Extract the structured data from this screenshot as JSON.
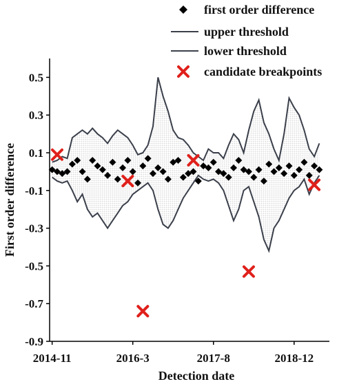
{
  "chart_data": {
    "type": "line",
    "xlabel": "Detection date",
    "ylabel": "First order difference",
    "x_ticks": [
      "2014-11",
      "2016-3",
      "2017-8",
      "2018-12"
    ],
    "x_tick_index": [
      0,
      16,
      32,
      48
    ],
    "y_ticks": [
      0.5,
      0.3,
      0.1,
      -0.1,
      -0.3,
      -0.5,
      -0.7,
      -0.9
    ],
    "ylim": [
      -0.9,
      0.6
    ],
    "xlim": [
      -0.5,
      55
    ],
    "grid": false,
    "legend_position": "top-right",
    "legend": [
      {
        "label": "first order difference",
        "marker": "diamond"
      },
      {
        "label": "upper threshold",
        "marker": "line"
      },
      {
        "label": "lower threshold",
        "marker": "line"
      },
      {
        "label": "candidate breakpoints",
        "marker": "x"
      }
    ],
    "colors": {
      "points": "#000000",
      "threshold": "#3a3f4a",
      "band_fill": "#d9d9d9",
      "breakpoint": "#e0201b"
    },
    "series": [
      {
        "name": "first order difference",
        "marker": "diamond",
        "x": [
          0,
          1,
          2,
          3,
          4,
          5,
          6,
          7,
          8,
          9,
          10,
          11,
          12,
          13,
          14,
          15,
          16,
          17,
          18,
          19,
          20,
          21,
          22,
          23,
          24,
          25,
          26,
          27,
          28,
          29,
          30,
          31,
          32,
          33,
          34,
          35,
          36,
          37,
          38,
          39,
          40,
          41,
          42,
          43,
          44,
          45,
          46,
          47,
          48,
          49,
          50,
          51,
          52,
          53
        ],
        "y": [
          0.01,
          0.0,
          -0.01,
          0.0,
          0.04,
          0.06,
          0.0,
          -0.04,
          0.06,
          0.03,
          0.01,
          -0.02,
          0.05,
          -0.04,
          0.02,
          0.06,
          0.0,
          -0.06,
          0.03,
          0.07,
          -0.01,
          0.02,
          0.0,
          -0.04,
          0.05,
          0.06,
          -0.03,
          -0.01,
          0.0,
          -0.05,
          0.03,
          0.02,
          0.05,
          0.0,
          -0.01,
          -0.03,
          0.02,
          0.06,
          0.01,
          0.0,
          -0.03,
          0.01,
          -0.05,
          0.04,
          0.0,
          0.02,
          -0.01,
          0.03,
          -0.02,
          0.01,
          0.05,
          -0.02,
          0.03,
          0.01
        ]
      },
      {
        "name": "upper threshold",
        "x": [
          0,
          1,
          2,
          3,
          4,
          5,
          6,
          7,
          8,
          9,
          10,
          11,
          12,
          13,
          14,
          15,
          16,
          17,
          18,
          19,
          20,
          21,
          22,
          23,
          24,
          25,
          26,
          27,
          28,
          29,
          30,
          31,
          32,
          33,
          34,
          35,
          36,
          37,
          38,
          39,
          40,
          41,
          42,
          43,
          44,
          45,
          46,
          47,
          48,
          49,
          50,
          51,
          52,
          53
        ],
        "y": [
          0.05,
          0.06,
          0.08,
          0.07,
          0.18,
          0.2,
          0.22,
          0.2,
          0.23,
          0.2,
          0.18,
          0.15,
          0.19,
          0.22,
          0.2,
          0.18,
          0.14,
          0.09,
          0.1,
          0.14,
          0.24,
          0.5,
          0.4,
          0.32,
          0.22,
          0.18,
          0.17,
          0.14,
          0.1,
          0.08,
          0.06,
          0.12,
          0.1,
          0.1,
          0.07,
          0.14,
          0.2,
          0.17,
          0.1,
          0.22,
          0.32,
          0.38,
          0.26,
          0.2,
          0.12,
          0.06,
          0.2,
          0.39,
          0.34,
          0.3,
          0.22,
          0.12,
          0.08,
          0.15
        ]
      },
      {
        "name": "lower threshold",
        "x": [
          0,
          1,
          2,
          3,
          4,
          5,
          6,
          7,
          8,
          9,
          10,
          11,
          12,
          13,
          14,
          15,
          16,
          17,
          18,
          19,
          20,
          21,
          22,
          23,
          24,
          25,
          26,
          27,
          28,
          29,
          30,
          31,
          32,
          33,
          34,
          35,
          36,
          37,
          38,
          39,
          40,
          41,
          42,
          43,
          44,
          45,
          46,
          47,
          48,
          49,
          50,
          51,
          52,
          53
        ],
        "y": [
          -0.03,
          -0.05,
          -0.06,
          -0.05,
          -0.1,
          -0.16,
          -0.12,
          -0.2,
          -0.24,
          -0.22,
          -0.26,
          -0.3,
          -0.26,
          -0.22,
          -0.18,
          -0.16,
          -0.12,
          -0.1,
          -0.08,
          -0.06,
          -0.1,
          -0.2,
          -0.28,
          -0.3,
          -0.26,
          -0.2,
          -0.14,
          -0.1,
          -0.06,
          -0.02,
          -0.04,
          -0.05,
          -0.04,
          -0.06,
          -0.1,
          -0.18,
          -0.26,
          -0.2,
          -0.1,
          -0.08,
          -0.16,
          -0.24,
          -0.36,
          -0.42,
          -0.3,
          -0.26,
          -0.2,
          -0.14,
          -0.1,
          -0.08,
          -0.04,
          -0.12,
          -0.06,
          -0.02
        ]
      },
      {
        "name": "candidate breakpoints",
        "marker": "x",
        "x": [
          1,
          15,
          18,
          28,
          39,
          52
        ],
        "y": [
          0.09,
          -0.05,
          -0.74,
          0.06,
          -0.53,
          -0.07
        ]
      }
    ]
  }
}
